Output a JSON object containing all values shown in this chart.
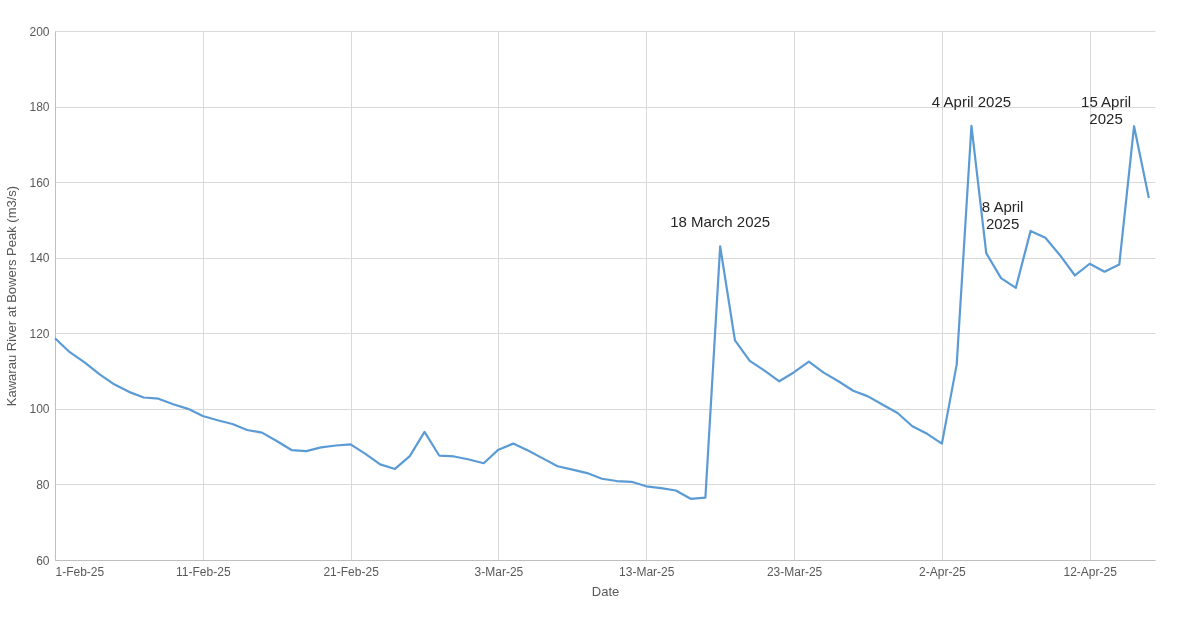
{
  "chart_data": {
    "type": "line",
    "xlabel": "Date",
    "ylabel": "Kawarau River at Bowers Peak (m3/s)",
    "x": [
      "2025-02-01",
      "2025-02-02",
      "2025-02-03",
      "2025-02-04",
      "2025-02-05",
      "2025-02-06",
      "2025-02-07",
      "2025-02-08",
      "2025-02-09",
      "2025-02-10",
      "2025-02-11",
      "2025-02-12",
      "2025-02-13",
      "2025-02-14",
      "2025-02-15",
      "2025-02-16",
      "2025-02-17",
      "2025-02-18",
      "2025-02-19",
      "2025-02-20",
      "2025-02-21",
      "2025-02-22",
      "2025-02-23",
      "2025-02-24",
      "2025-02-25",
      "2025-02-26",
      "2025-02-27",
      "2025-02-28",
      "2025-03-01",
      "2025-03-02",
      "2025-03-03",
      "2025-03-04",
      "2025-03-05",
      "2025-03-06",
      "2025-03-07",
      "2025-03-08",
      "2025-03-09",
      "2025-03-10",
      "2025-03-11",
      "2025-03-12",
      "2025-03-13",
      "2025-03-14",
      "2025-03-15",
      "2025-03-16",
      "2025-03-17",
      "2025-03-18",
      "2025-03-19",
      "2025-03-20",
      "2025-03-21",
      "2025-03-22",
      "2025-03-23",
      "2025-03-24",
      "2025-03-25",
      "2025-03-26",
      "2025-03-27",
      "2025-03-28",
      "2025-03-29",
      "2025-03-30",
      "2025-03-31",
      "2025-04-01",
      "2025-04-02",
      "2025-04-03",
      "2025-04-04",
      "2025-04-05",
      "2025-04-06",
      "2025-04-07",
      "2025-04-08",
      "2025-04-09",
      "2025-04-10",
      "2025-04-11",
      "2025-04-12",
      "2025-04-13",
      "2025-04-14",
      "2025-04-15",
      "2025-04-16"
    ],
    "series": [
      {
        "color": "#5b9bd5",
        "values": [
          118.7,
          115.0,
          112.3,
          109.2,
          106.5,
          104.5,
          103.0,
          102.7,
          101.2,
          100.0,
          98.1,
          97.0,
          96.0,
          94.4,
          93.7,
          91.5,
          89.1,
          88.8,
          89.8,
          90.3,
          90.6,
          88.1,
          85.3,
          84.1,
          87.5,
          93.9,
          87.6,
          87.4,
          86.6,
          85.6,
          89.2,
          90.8,
          89.0,
          86.9,
          84.8,
          83.9,
          83.0,
          81.5,
          80.9,
          80.7,
          79.5,
          79.0,
          78.4,
          76.2,
          76.5,
          143.0,
          118.1,
          112.7,
          110.1,
          107.3,
          109.7,
          112.5,
          109.6,
          107.3,
          104.8,
          103.3,
          101.1,
          98.9,
          95.4,
          93.4,
          90.8,
          111.7,
          174.9,
          141.2,
          134.6,
          132.0,
          147.1,
          145.3,
          140.6,
          135.3,
          138.4,
          136.3,
          138.2,
          174.8,
          155.8
        ]
      }
    ],
    "xlim": [
      "2025-02-01",
      "2025-04-16T10:00"
    ],
    "xticks": [
      {
        "value": "2025-02-01",
        "label": "1-Feb-25"
      },
      {
        "value": "2025-02-11",
        "label": "11-Feb-25"
      },
      {
        "value": "2025-02-21",
        "label": "21-Feb-25"
      },
      {
        "value": "2025-03-03",
        "label": "3-Mar-25"
      },
      {
        "value": "2025-03-13",
        "label": "13-Mar-25"
      },
      {
        "value": "2025-03-23",
        "label": "23-Mar-25"
      },
      {
        "value": "2025-04-02",
        "label": "2-Apr-25"
      },
      {
        "value": "2025-04-12",
        "label": "12-Apr-25"
      }
    ],
    "ylim": [
      60,
      200
    ],
    "yticks": [
      60,
      80,
      100,
      120,
      140,
      160,
      180,
      200
    ],
    "grid": true,
    "marker": "none",
    "line_style": "solid",
    "annotations": [
      {
        "text": "18 March 2025",
        "x": "2025-03-18",
        "y": 143.0
      },
      {
        "text": "4 April 2025",
        "x": "2025-04-04",
        "y": 174.9
      },
      {
        "text": "8 April\n2025",
        "x": "2025-04-08",
        "y": 147.1
      },
      {
        "text": "15 April\n2025",
        "x": "2025-04-15",
        "y": 174.8
      }
    ]
  }
}
